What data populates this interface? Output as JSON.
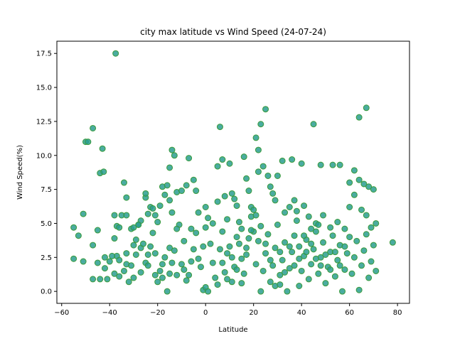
{
  "chart_data": {
    "type": "scatter",
    "title": "city max latitude vs Wind Speed (24-07-24)",
    "xlabel": "Latitude",
    "ylabel": "Wind Speed(%)",
    "xlim": [
      -62,
      85
    ],
    "ylim": [
      -0.88,
      18.4
    ],
    "x_ticks": [
      -60,
      -40,
      -20,
      0,
      20,
      40,
      60,
      80
    ],
    "x_tick_labels": [
      "−60",
      "−40",
      "−20",
      "0",
      "20",
      "40",
      "60",
      "80"
    ],
    "y_ticks": [
      0.0,
      2.5,
      5.0,
      7.5,
      10.0,
      12.5,
      15.0,
      17.5
    ],
    "y_tick_labels": [
      "0.0",
      "2.5",
      "5.0",
      "7.5",
      "10.0",
      "12.5",
      "15.0",
      "17.5"
    ],
    "grid": false,
    "legend": "none",
    "marker_fill": "#2a9d8f",
    "marker_edge": "#3a9a3a",
    "marker_alpha": 0.85,
    "points": [
      [
        -37.5,
        17.5
      ],
      [
        -47,
        12.0
      ],
      [
        -50,
        11.0
      ],
      [
        -49,
        11.0
      ],
      [
        -43,
        10.5
      ],
      [
        -44,
        8.7
      ],
      [
        -42.5,
        8.8
      ],
      [
        -34,
        8.0
      ],
      [
        -55,
        4.7
      ],
      [
        -53,
        4.1
      ],
      [
        -51,
        5.7
      ],
      [
        -47,
        3.4
      ],
      [
        -45,
        4.5
      ],
      [
        -42,
        2.5
      ],
      [
        -40,
        2.2
      ],
      [
        -38,
        3.9
      ],
      [
        -37,
        4.8
      ],
      [
        -36,
        4.7
      ],
      [
        -35,
        5.6
      ],
      [
        -38,
        5.6
      ],
      [
        -33,
        5.6
      ],
      [
        -33,
        6.9
      ],
      [
        -31,
        4.6
      ],
      [
        -30,
        4.7
      ],
      [
        -29,
        3.8
      ],
      [
        -28,
        4.9
      ],
      [
        -27,
        5.2
      ],
      [
        -25,
        6.9
      ],
      [
        -25,
        7.2
      ],
      [
        -24,
        5.7
      ],
      [
        -23,
        6.2
      ],
      [
        -22,
        6.1
      ],
      [
        -21,
        5.6
      ],
      [
        -20,
        5.1
      ],
      [
        -19,
        6.3
      ],
      [
        -18,
        7.7
      ],
      [
        -17,
        7.1
      ],
      [
        -16,
        7.8
      ],
      [
        -15,
        6.7
      ],
      [
        -14,
        5.8
      ],
      [
        -15,
        9.1
      ],
      [
        -14,
        10.4
      ],
      [
        -13,
        10.0
      ],
      [
        -12,
        7.3
      ],
      [
        -10,
        7.4
      ],
      [
        -8,
        7.8
      ],
      [
        -7,
        9.8
      ],
      [
        -5,
        8.2
      ],
      [
        -4,
        7.4
      ],
      [
        -55,
        2.4
      ],
      [
        -51,
        2.2
      ],
      [
        -47,
        0.9
      ],
      [
        -44,
        0.9
      ],
      [
        -42,
        1.7
      ],
      [
        -38,
        1.3
      ],
      [
        -37,
        2.6
      ],
      [
        -36,
        2.3
      ],
      [
        -34,
        1.5
      ],
      [
        -33,
        2.0
      ],
      [
        -32,
        0.7
      ],
      [
        -31,
        1.9
      ],
      [
        -30,
        3.4
      ],
      [
        -29,
        2.7
      ],
      [
        -28,
        4.9
      ],
      [
        -27,
        3.2
      ],
      [
        -26,
        3.5
      ],
      [
        -25,
        2.1
      ],
      [
        -24,
        1.9
      ],
      [
        -23,
        3.3
      ],
      [
        -22,
        4.3
      ],
      [
        -21,
        2.8
      ],
      [
        -20,
        0.7
      ],
      [
        -19,
        1.5
      ],
      [
        -18,
        1.0
      ],
      [
        -17,
        2.5
      ],
      [
        -16,
        0.0
      ],
      [
        -15,
        1.3
      ],
      [
        -14,
        2.1
      ],
      [
        -13,
        3.0
      ],
      [
        -12,
        1.2
      ],
      [
        -11,
        4.9
      ],
      [
        -10,
        2.0
      ],
      [
        -9,
        1.6
      ],
      [
        -8,
        0.8
      ],
      [
        -7,
        1.2
      ],
      [
        -6,
        2.2
      ],
      [
        -5,
        3.1
      ],
      [
        -4,
        4.3
      ],
      [
        -3,
        2.4
      ],
      [
        -2,
        1.8
      ],
      [
        -1,
        3.3
      ],
      [
        0,
        4.7
      ],
      [
        0,
        6.2
      ],
      [
        1,
        5.4
      ],
      [
        2,
        3.5
      ],
      [
        -1,
        0.1
      ],
      [
        0,
        0.3
      ],
      [
        1,
        0.0
      ],
      [
        3,
        2.1
      ],
      [
        4,
        1.0
      ],
      [
        5,
        0.5
      ],
      [
        5,
        9.2
      ],
      [
        6,
        12.1
      ],
      [
        7,
        9.7
      ],
      [
        8,
        7.0
      ],
      [
        9,
        5.3
      ],
      [
        10,
        9.4
      ],
      [
        11,
        7.2
      ],
      [
        12,
        6.8
      ],
      [
        13,
        6.3
      ],
      [
        14,
        5.1
      ],
      [
        15,
        4.6
      ],
      [
        16,
        9.9
      ],
      [
        17,
        8.3
      ],
      [
        18,
        7.4
      ],
      [
        19,
        6.2
      ],
      [
        20,
        6.0
      ],
      [
        21,
        11.3
      ],
      [
        22,
        8.8
      ],
      [
        22,
        10.4
      ],
      [
        23,
        12.3
      ],
      [
        25,
        13.4
      ],
      [
        24,
        9.2
      ],
      [
        26,
        8.5
      ],
      [
        27,
        7.7
      ],
      [
        28,
        7.2
      ],
      [
        29,
        6.7
      ],
      [
        30,
        8.5
      ],
      [
        32,
        9.6
      ],
      [
        36,
        9.7
      ],
      [
        37,
        6.7
      ],
      [
        40,
        9.4
      ],
      [
        45,
        12.3
      ],
      [
        48,
        9.3
      ],
      [
        53,
        9.3
      ],
      [
        56,
        9.3
      ],
      [
        60,
        8.0
      ],
      [
        62,
        8.9
      ],
      [
        64,
        12.8
      ],
      [
        67,
        13.5
      ],
      [
        64,
        8.2
      ],
      [
        66,
        7.9
      ],
      [
        68,
        7.7
      ],
      [
        70,
        7.5
      ],
      [
        62,
        7.1
      ],
      [
        65,
        6.0
      ],
      [
        67,
        5.6
      ],
      [
        69,
        4.7
      ],
      [
        71,
        5.0
      ],
      [
        60,
        6.2
      ],
      [
        6,
        3.1
      ],
      [
        7,
        2.1
      ],
      [
        8,
        1.4
      ],
      [
        9,
        0.9
      ],
      [
        10,
        3.3
      ],
      [
        11,
        2.5
      ],
      [
        12,
        1.8
      ],
      [
        13,
        4.0
      ],
      [
        14,
        3.5
      ],
      [
        15,
        0.6
      ],
      [
        16,
        1.3
      ],
      [
        17,
        2.7
      ],
      [
        18,
        3.9
      ],
      [
        19,
        5.5
      ],
      [
        20,
        4.4
      ],
      [
        21,
        2.0
      ],
      [
        22,
        3.7
      ],
      [
        23,
        0.0
      ],
      [
        24,
        1.5
      ],
      [
        25,
        2.8
      ],
      [
        26,
        4.2
      ],
      [
        27,
        0.7
      ],
      [
        28,
        1.9
      ],
      [
        29,
        3.2
      ],
      [
        30,
        4.9
      ],
      [
        31,
        1.2
      ],
      [
        32,
        2.3
      ],
      [
        33,
        3.6
      ],
      [
        34,
        0.0
      ],
      [
        35,
        1.7
      ],
      [
        36,
        2.9
      ],
      [
        37,
        4.1
      ],
      [
        38,
        5.2
      ],
      [
        39,
        0.4
      ],
      [
        40,
        1.5
      ],
      [
        41,
        2.6
      ],
      [
        42,
        3.8
      ],
      [
        43,
        0.9
      ],
      [
        44,
        2.0
      ],
      [
        45,
        3.1
      ],
      [
        46,
        4.4
      ],
      [
        47,
        1.3
      ],
      [
        48,
        2.5
      ],
      [
        49,
        3.6
      ],
      [
        50,
        0.6
      ],
      [
        51,
        1.8
      ],
      [
        52,
        2.9
      ],
      [
        53,
        4.1
      ],
      [
        54,
        1.1
      ],
      [
        55,
        2.3
      ],
      [
        56,
        3.4
      ],
      [
        57,
        0.0
      ],
      [
        58,
        1.6
      ],
      [
        59,
        2.8
      ],
      [
        60,
        4.0
      ],
      [
        61,
        1.3
      ],
      [
        62,
        2.5
      ],
      [
        63,
        3.7
      ],
      [
        64,
        0.1
      ],
      [
        65,
        1.9
      ],
      [
        66,
        3.0
      ],
      [
        67,
        4.2
      ],
      [
        68,
        1.0
      ],
      [
        69,
        2.2
      ],
      [
        70,
        3.4
      ],
      [
        71,
        1.5
      ],
      [
        78,
        3.6
      ],
      [
        33,
        5.8
      ],
      [
        35,
        6.2
      ],
      [
        38,
        5.9
      ],
      [
        41,
        6.3
      ],
      [
        43,
        5.5
      ],
      [
        46,
        5.0
      ],
      [
        49,
        5.6
      ],
      [
        52,
        4.7
      ],
      [
        55,
        5.1
      ],
      [
        58,
        4.6
      ],
      [
        47,
        4.9
      ],
      [
        44,
        4.6
      ],
      [
        41,
        4.1
      ],
      [
        39,
        3.3
      ],
      [
        42,
        2.9
      ],
      [
        44,
        3.5
      ],
      [
        46,
        2.4
      ],
      [
        48,
        1.9
      ],
      [
        50,
        2.7
      ],
      [
        52,
        1.6
      ],
      [
        54,
        2.9
      ],
      [
        56,
        1.9
      ],
      [
        58,
        3.3
      ],
      [
        31,
        2.9
      ],
      [
        33,
        1.4
      ],
      [
        35,
        3.3
      ],
      [
        37,
        1.9
      ],
      [
        39,
        2.4
      ],
      [
        29,
        0.4
      ],
      [
        31,
        0.5
      ],
      [
        27,
        2.3
      ],
      [
        25,
        3.5
      ],
      [
        23,
        4.8
      ],
      [
        21,
        5.6
      ],
      [
        19,
        4.5
      ],
      [
        17,
        3.2
      ],
      [
        15,
        2.4
      ],
      [
        13,
        1.6
      ],
      [
        11,
        0.7
      ],
      [
        9,
        2.8
      ],
      [
        7,
        4.4
      ],
      [
        5,
        6.6
      ],
      [
        3,
        5.0
      ],
      [
        -3,
        5.8
      ],
      [
        -6,
        4.6
      ],
      [
        -9,
        3.7
      ],
      [
        -12,
        4.6
      ],
      [
        -15,
        3.2
      ],
      [
        -18,
        2.0
      ],
      [
        -21,
        1.2
      ],
      [
        -24,
        2.7
      ],
      [
        -27,
        1.4
      ],
      [
        -30,
        1.0
      ],
      [
        -33,
        2.8
      ],
      [
        -36,
        1.1
      ],
      [
        -39,
        2.6
      ],
      [
        -41,
        0.9
      ],
      [
        -45,
        2.1
      ]
    ]
  }
}
